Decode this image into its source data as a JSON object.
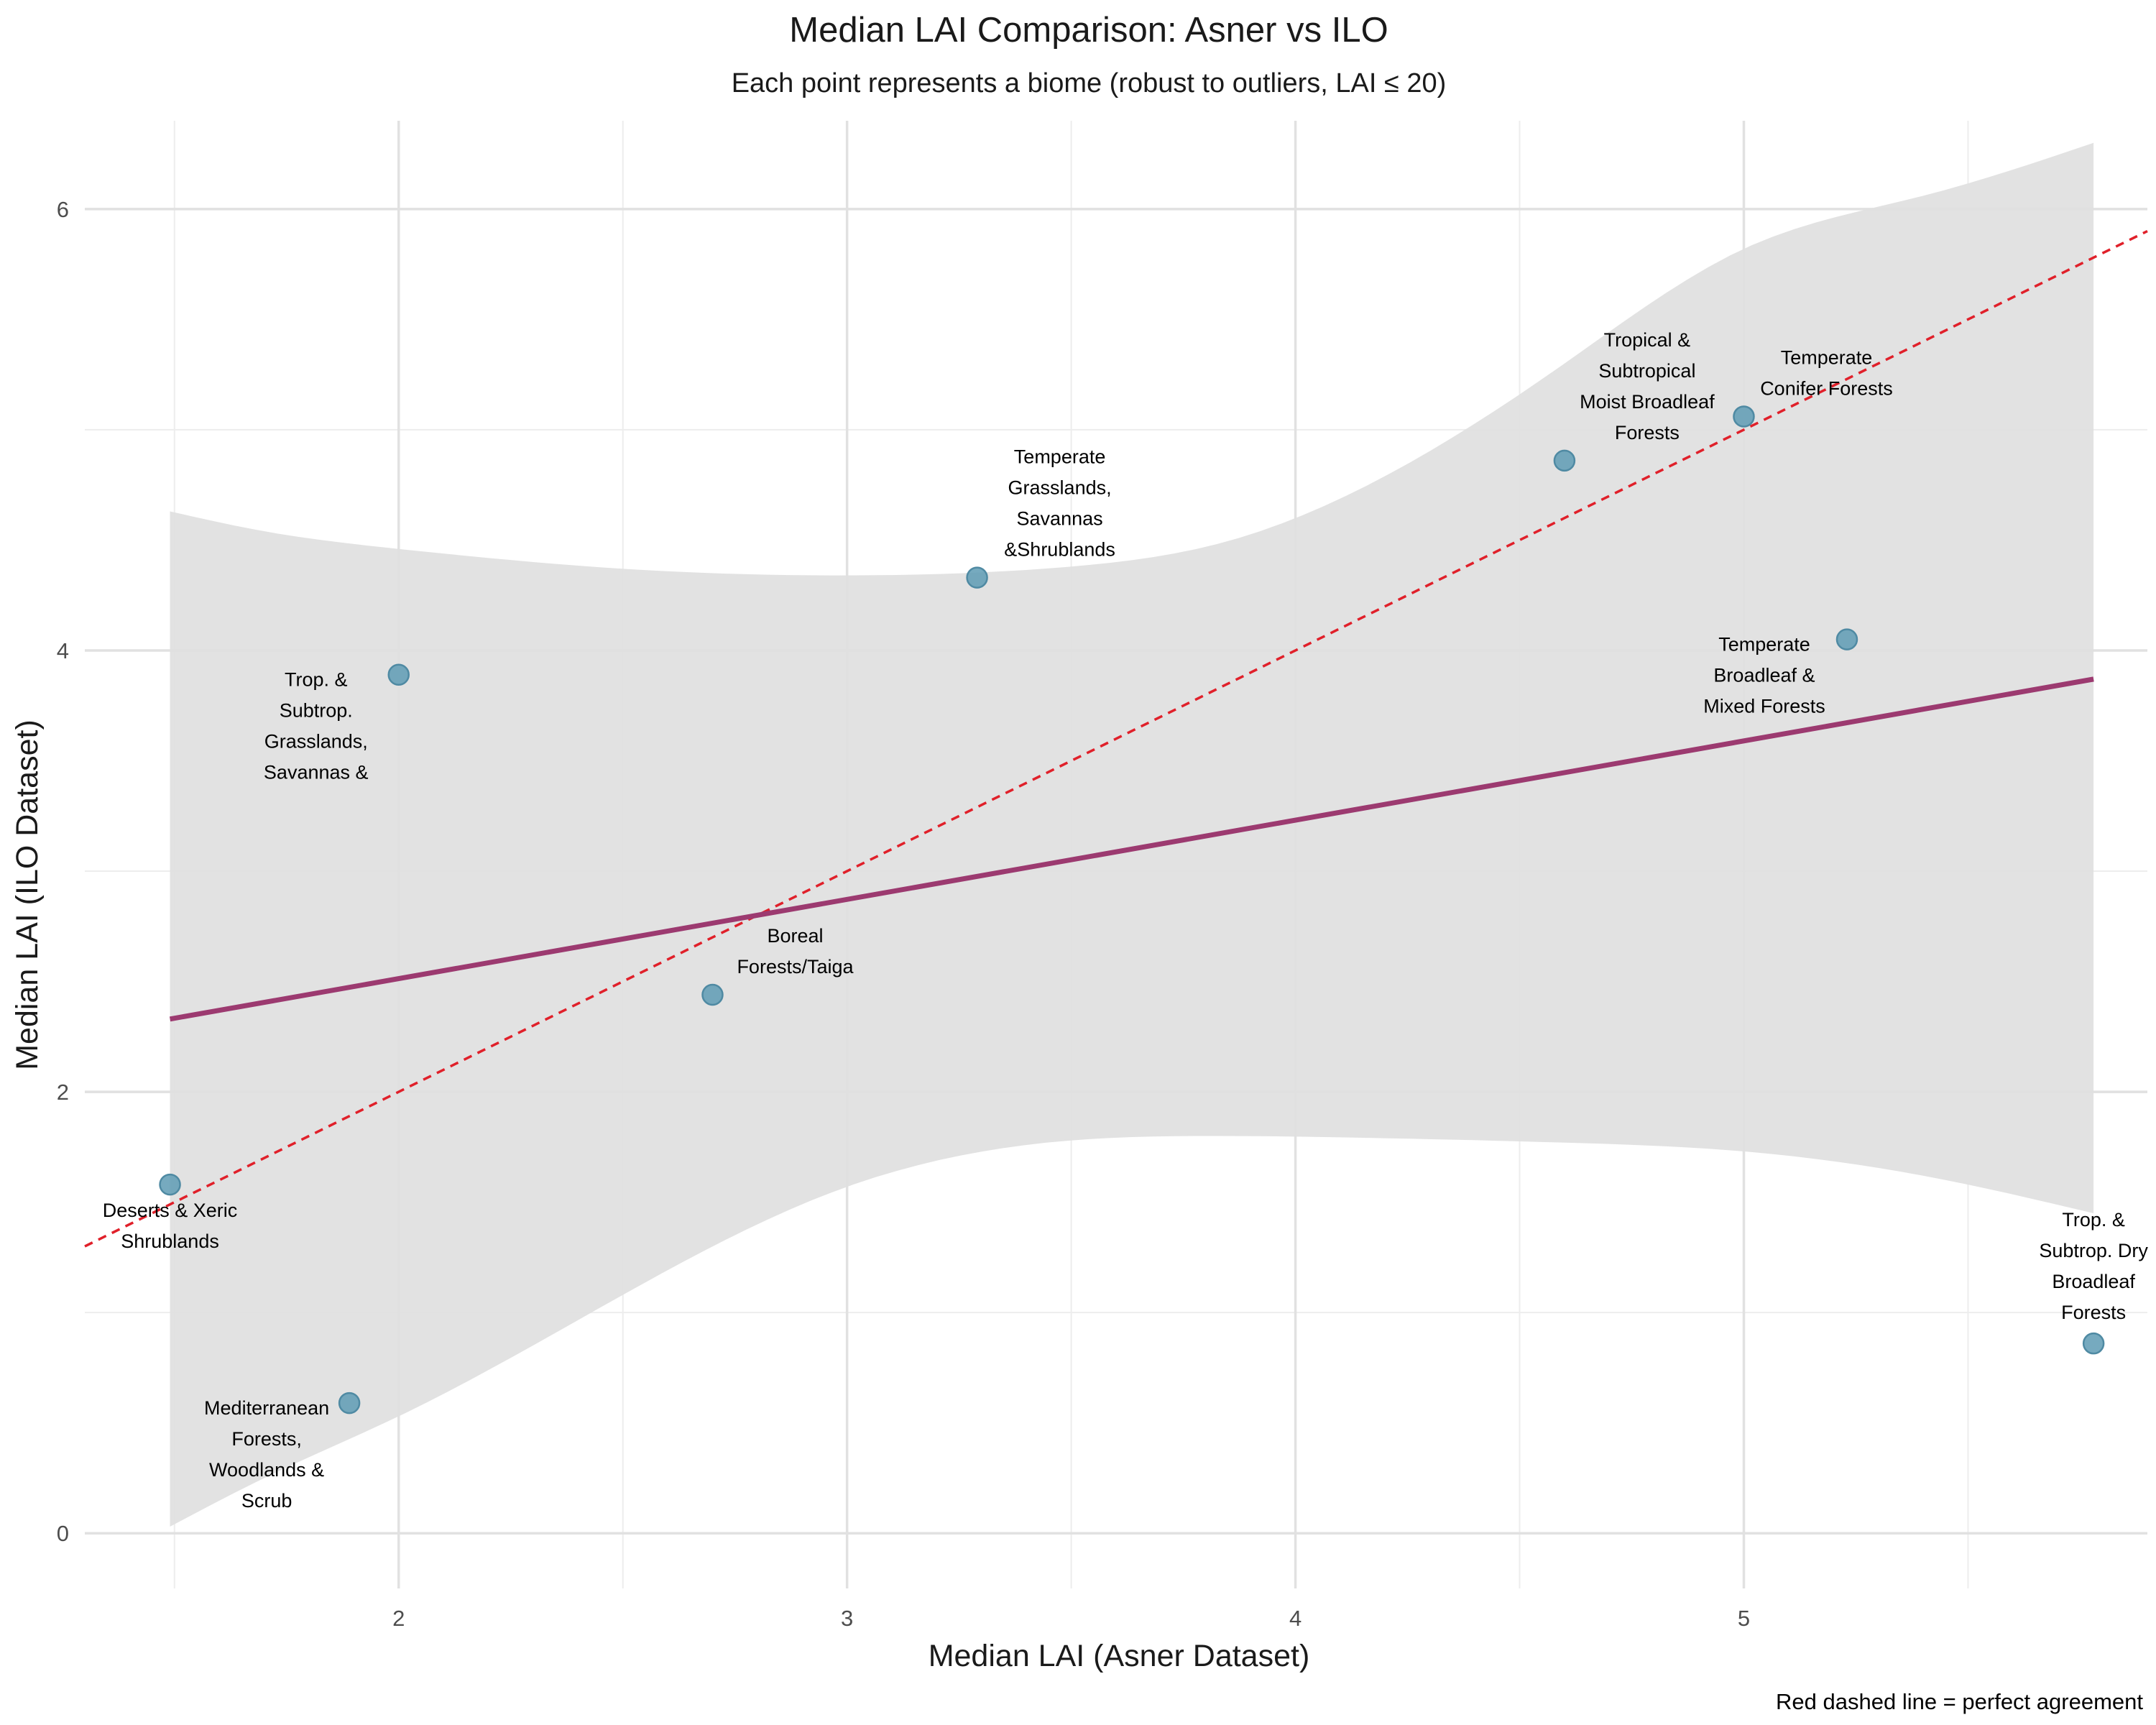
{
  "chart_data": {
    "type": "scatter",
    "title": "Median LAI Comparison: Asner vs ILO",
    "subtitle": "Each point represents a biome (robust to outliers, LAI ≤ 20)",
    "xlabel": "Median LAI (Asner Dataset)",
    "ylabel": "Median LAI (ILO Dataset)",
    "caption": "Red dashed line = perfect agreement",
    "xlim": [
      1.3,
      5.9
    ],
    "ylim": [
      -0.25,
      6.4
    ],
    "x_ticks": [
      2,
      3,
      4,
      5
    ],
    "y_ticks": [
      0,
      2,
      4,
      6
    ],
    "x_tick_labels": [
      "2",
      "3",
      "4",
      "5"
    ],
    "y_tick_labels": [
      "0",
      "2",
      "4",
      "6"
    ],
    "grid": true,
    "point_color": "#5e9bb4",
    "fit_color": "#9c3a70",
    "reference_color": "#e0202a",
    "band_color": "#e0e0e0",
    "points": [
      {
        "x": 1.49,
        "y": 1.58,
        "label_lines": [
          "Deserts & Xeric",
          "Shrublands"
        ],
        "label_pos": "below"
      },
      {
        "x": 1.89,
        "y": 0.59,
        "label_lines": [
          "Mediterranean",
          "Forests,",
          "Woodlands &",
          "Scrub"
        ],
        "label_pos": "below-left"
      },
      {
        "x": 2.0,
        "y": 3.89,
        "label_lines": [
          "Trop. &",
          "Subtrop.",
          "Grasslands,",
          "Savannas &"
        ],
        "label_pos": "below-left"
      },
      {
        "x": 2.7,
        "y": 2.44,
        "label_lines": [
          "Boreal",
          "Forests/Taiga"
        ],
        "label_pos": "above-right"
      },
      {
        "x": 3.29,
        "y": 4.33,
        "label_lines": [
          "Temperate",
          "Grasslands,",
          "Savannas",
          "&Shrublands"
        ],
        "label_pos": "above-right"
      },
      {
        "x": 4.6,
        "y": 4.86,
        "label_lines": [
          "Tropical &",
          "Subtropical",
          "Moist Broadleaf",
          "Forests"
        ],
        "label_pos": "above-right"
      },
      {
        "x": 5.0,
        "y": 5.06,
        "label_lines": [
          "Temperate",
          "Conifer Forests"
        ],
        "label_pos": "above-right"
      },
      {
        "x": 5.23,
        "y": 4.05,
        "label_lines": [
          "Temperate",
          "Broadleaf &",
          "Mixed Forests"
        ],
        "label_pos": "below-left"
      },
      {
        "x": 5.78,
        "y": 0.86,
        "label_lines": [
          "Trop. &",
          "Subtrop. Dry",
          "Broadleaf",
          "Forests"
        ],
        "label_pos": "above"
      }
    ],
    "fit_line": {
      "x": [
        1.49,
        5.78
      ],
      "y": [
        2.33,
        3.87
      ]
    },
    "confidence_band": {
      "x": [
        1.49,
        1.7,
        2.0,
        2.5,
        3.0,
        3.5,
        3.84,
        4.2,
        4.6,
        5.0,
        5.4,
        5.78
      ],
      "upper": [
        4.63,
        4.54,
        4.46,
        4.37,
        4.34,
        4.38,
        4.49,
        4.79,
        5.3,
        5.82,
        6.06,
        6.3
      ],
      "lower": [
        0.03,
        0.25,
        0.53,
        1.08,
        1.57,
        1.78,
        1.8,
        1.79,
        1.77,
        1.73,
        1.62,
        1.45
      ]
    },
    "reference_line": {
      "x": [
        1.3,
        5.9
      ],
      "y": [
        1.3,
        5.9
      ]
    }
  }
}
